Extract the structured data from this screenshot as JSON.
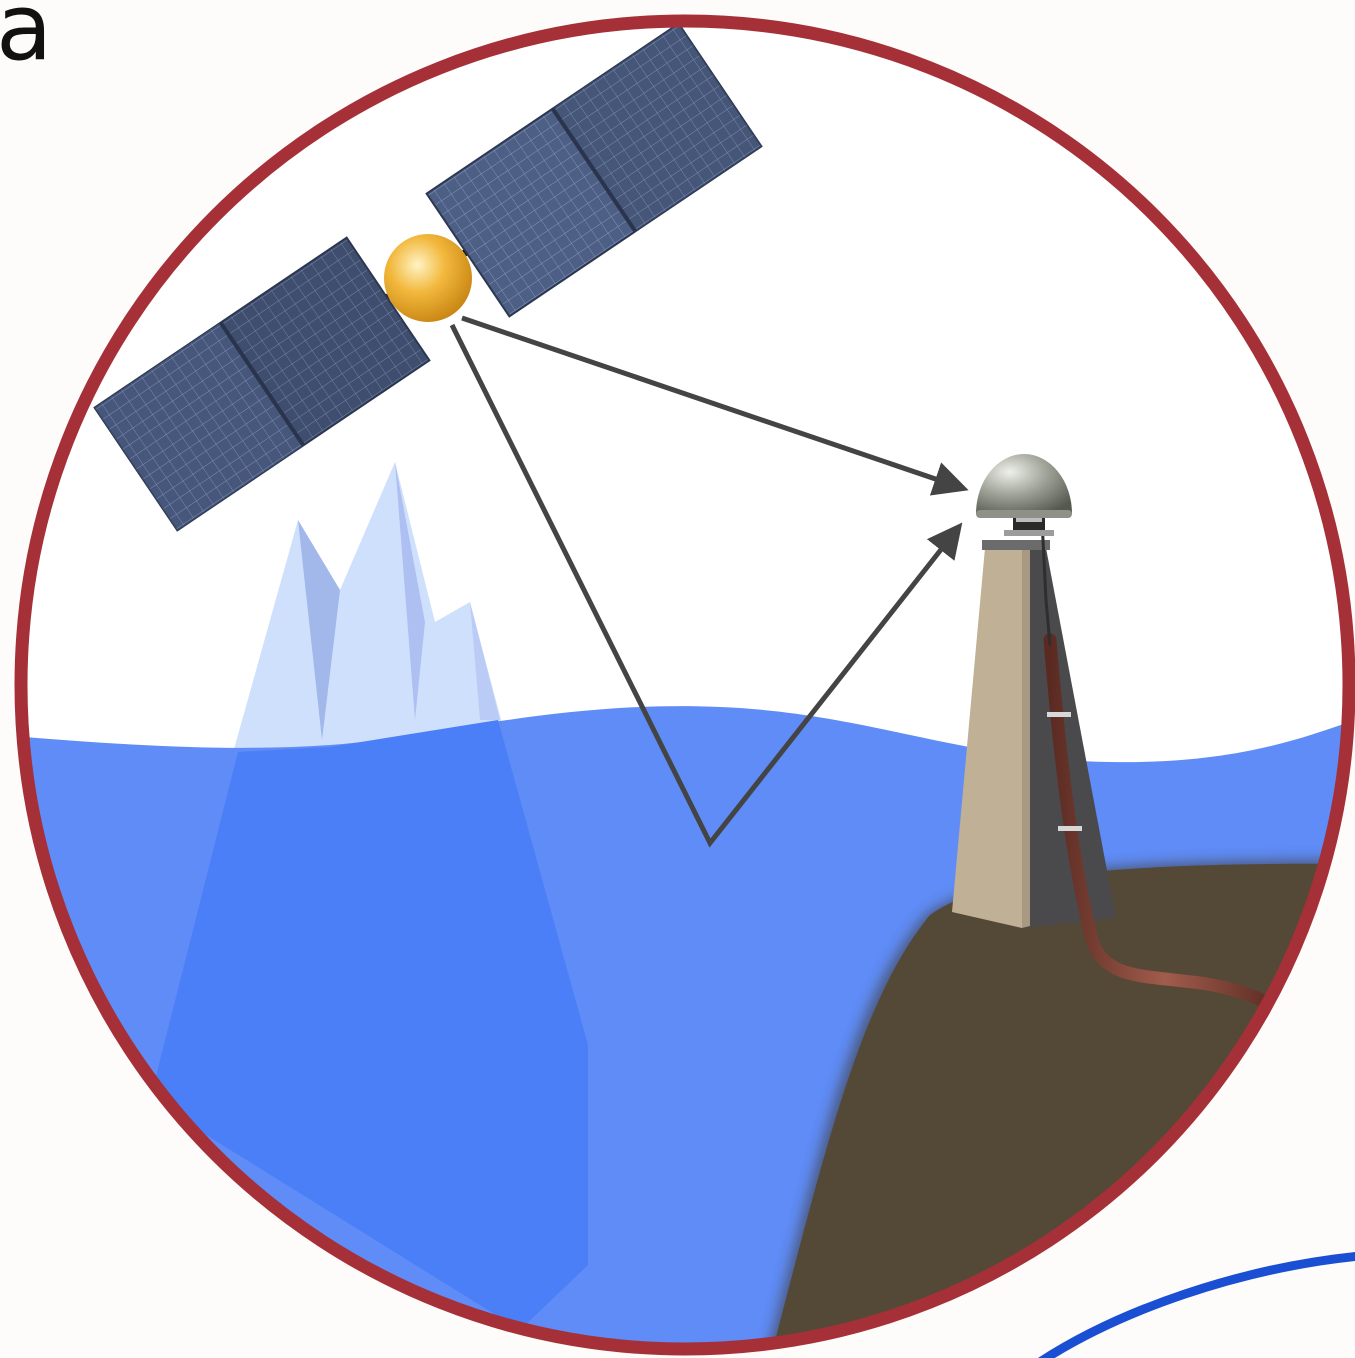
{
  "figure": {
    "panel_label": "a"
  },
  "colors": {
    "frame": "#a63038",
    "sea": "#5f8cf6",
    "sea_submerged": "#4b7ff7",
    "ice": "#cfe0fc",
    "ice_shadow": "#a2b7ea",
    "land": "#544837",
    "pillar_light": "#bfb096",
    "pillar_dark": "#4a4a4c",
    "cable": "#7a3f35",
    "satellite_body": "#e9a928",
    "solar_panel": "#3d4a68",
    "antenna_dome": "#9a9d93",
    "signal_arrow": "#444444",
    "outer_arc": "#1b4fd3"
  },
  "icons": {
    "satellite": "satellite-icon",
    "iceberg": "iceberg-icon",
    "gnss_antenna": "gnss-antenna-icon",
    "monument": "monument-pillar-icon"
  }
}
